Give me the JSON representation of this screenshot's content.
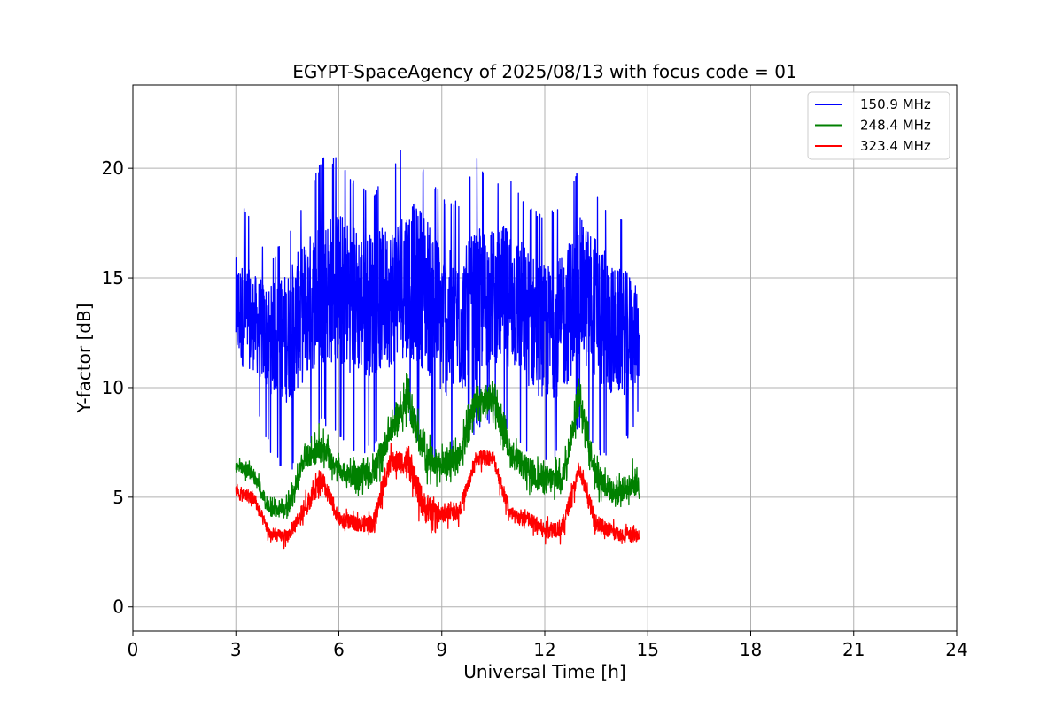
{
  "chart_data": {
    "type": "line",
    "title": "EGYPT-SpaceAgency of 2025/08/13 with focus code = 01",
    "xlabel": "Universal Time [h]",
    "ylabel": "Y-factor [dB]",
    "xlim": [
      0,
      24
    ],
    "ylim": [
      -1.1,
      23.8
    ],
    "xticks": [
      0,
      3,
      6,
      9,
      12,
      15,
      18,
      21,
      24
    ],
    "yticks": [
      0,
      5,
      10,
      15,
      20
    ],
    "grid": true,
    "legend_position": "top-right",
    "series": [
      {
        "name": "150.9 MHz",
        "color": "#0000ff",
        "x": [
          3.0,
          3.5,
          4.0,
          4.5,
          5.0,
          5.5,
          6.0,
          6.5,
          7.0,
          7.5,
          8.0,
          8.5,
          9.0,
          9.5,
          10.0,
          10.5,
          11.0,
          11.5,
          12.0,
          12.5,
          13.0,
          13.5,
          14.0,
          14.5,
          14.75
        ],
        "mean": [
          13.5,
          13.0,
          12.2,
          12.3,
          13.5,
          14.5,
          14.5,
          14.0,
          13.8,
          14.2,
          15.0,
          14.5,
          13.0,
          12.8,
          13.8,
          14.2,
          14.2,
          13.2,
          12.5,
          12.8,
          14.5,
          13.6,
          12.5,
          12.5,
          12.3
        ],
        "max": [
          19.2,
          17.5,
          16.0,
          17.0,
          18.5,
          20.5,
          20.5,
          19.5,
          19.0,
          19.8,
          21.5,
          20.0,
          18.8,
          18.5,
          20.5,
          19.5,
          19.8,
          18.5,
          17.8,
          18.5,
          20.3,
          19.0,
          17.8,
          17.7,
          16.0
        ],
        "min": [
          10.2,
          9.5,
          7.0,
          6.0,
          6.8,
          8.5,
          7.5,
          7.0,
          7.0,
          8.0,
          8.5,
          6.5,
          6.0,
          7.0,
          8.0,
          8.5,
          7.8,
          7.0,
          6.5,
          7.0,
          8.2,
          6.8,
          6.8,
          7.8,
          9.0
        ]
      },
      {
        "name": "248.4 MHz",
        "color": "#008000",
        "x": [
          3.0,
          3.5,
          4.0,
          4.5,
          5.0,
          5.5,
          6.0,
          6.5,
          7.0,
          7.5,
          8.0,
          8.5,
          9.0,
          9.5,
          10.0,
          10.5,
          11.0,
          11.5,
          12.0,
          12.5,
          13.0,
          13.5,
          14.0,
          14.5,
          14.75
        ],
        "mean": [
          6.4,
          6.1,
          4.4,
          4.4,
          6.8,
          7.2,
          6.2,
          6.0,
          6.1,
          8.0,
          9.5,
          6.8,
          6.5,
          6.8,
          9.2,
          9.5,
          7.0,
          6.2,
          5.8,
          5.8,
          9.5,
          6.0,
          5.2,
          5.5,
          5.8
        ],
        "max": [
          6.9,
          6.8,
          5.0,
          5.2,
          7.6,
          8.5,
          7.0,
          6.8,
          7.0,
          9.0,
          10.8,
          8.0,
          7.5,
          7.8,
          10.8,
          10.5,
          8.0,
          7.2,
          7.0,
          6.8,
          10.5,
          7.0,
          6.2,
          6.5,
          7.5
        ],
        "min": [
          6.0,
          5.5,
          4.0,
          3.8,
          6.0,
          6.2,
          5.5,
          5.0,
          5.0,
          6.8,
          8.2,
          5.5,
          5.5,
          5.8,
          7.5,
          8.2,
          6.0,
          5.0,
          4.5,
          4.8,
          8.2,
          4.8,
          4.3,
          4.5,
          4.8
        ]
      },
      {
        "name": "323.4 MHz",
        "color": "#ff0000",
        "x": [
          3.0,
          3.5,
          4.0,
          4.5,
          5.0,
          5.5,
          6.0,
          6.5,
          7.0,
          7.5,
          8.0,
          8.5,
          9.0,
          9.5,
          10.0,
          10.5,
          11.0,
          11.5,
          12.0,
          12.5,
          13.0,
          13.5,
          14.0,
          14.5,
          14.75
        ],
        "mean": [
          5.2,
          5.0,
          3.3,
          3.2,
          4.5,
          5.8,
          4.0,
          3.8,
          3.8,
          6.6,
          6.6,
          4.5,
          4.2,
          4.3,
          6.8,
          6.8,
          4.2,
          4.0,
          3.5,
          3.6,
          6.2,
          3.8,
          3.4,
          3.2,
          3.3
        ],
        "max": [
          5.8,
          5.6,
          3.8,
          3.6,
          5.2,
          6.8,
          4.6,
          4.4,
          4.5,
          7.5,
          7.5,
          5.5,
          4.8,
          4.8,
          7.3,
          7.2,
          4.8,
          4.6,
          4.2,
          4.2,
          6.8,
          4.5,
          4.0,
          3.8,
          3.8
        ],
        "min": [
          4.6,
          4.5,
          2.8,
          2.6,
          3.8,
          5.0,
          3.5,
          3.2,
          3.0,
          5.8,
          5.5,
          3.0,
          3.5,
          3.6,
          6.0,
          6.0,
          3.5,
          3.3,
          2.8,
          2.8,
          5.5,
          3.0,
          2.8,
          2.7,
          2.8
        ]
      }
    ]
  }
}
